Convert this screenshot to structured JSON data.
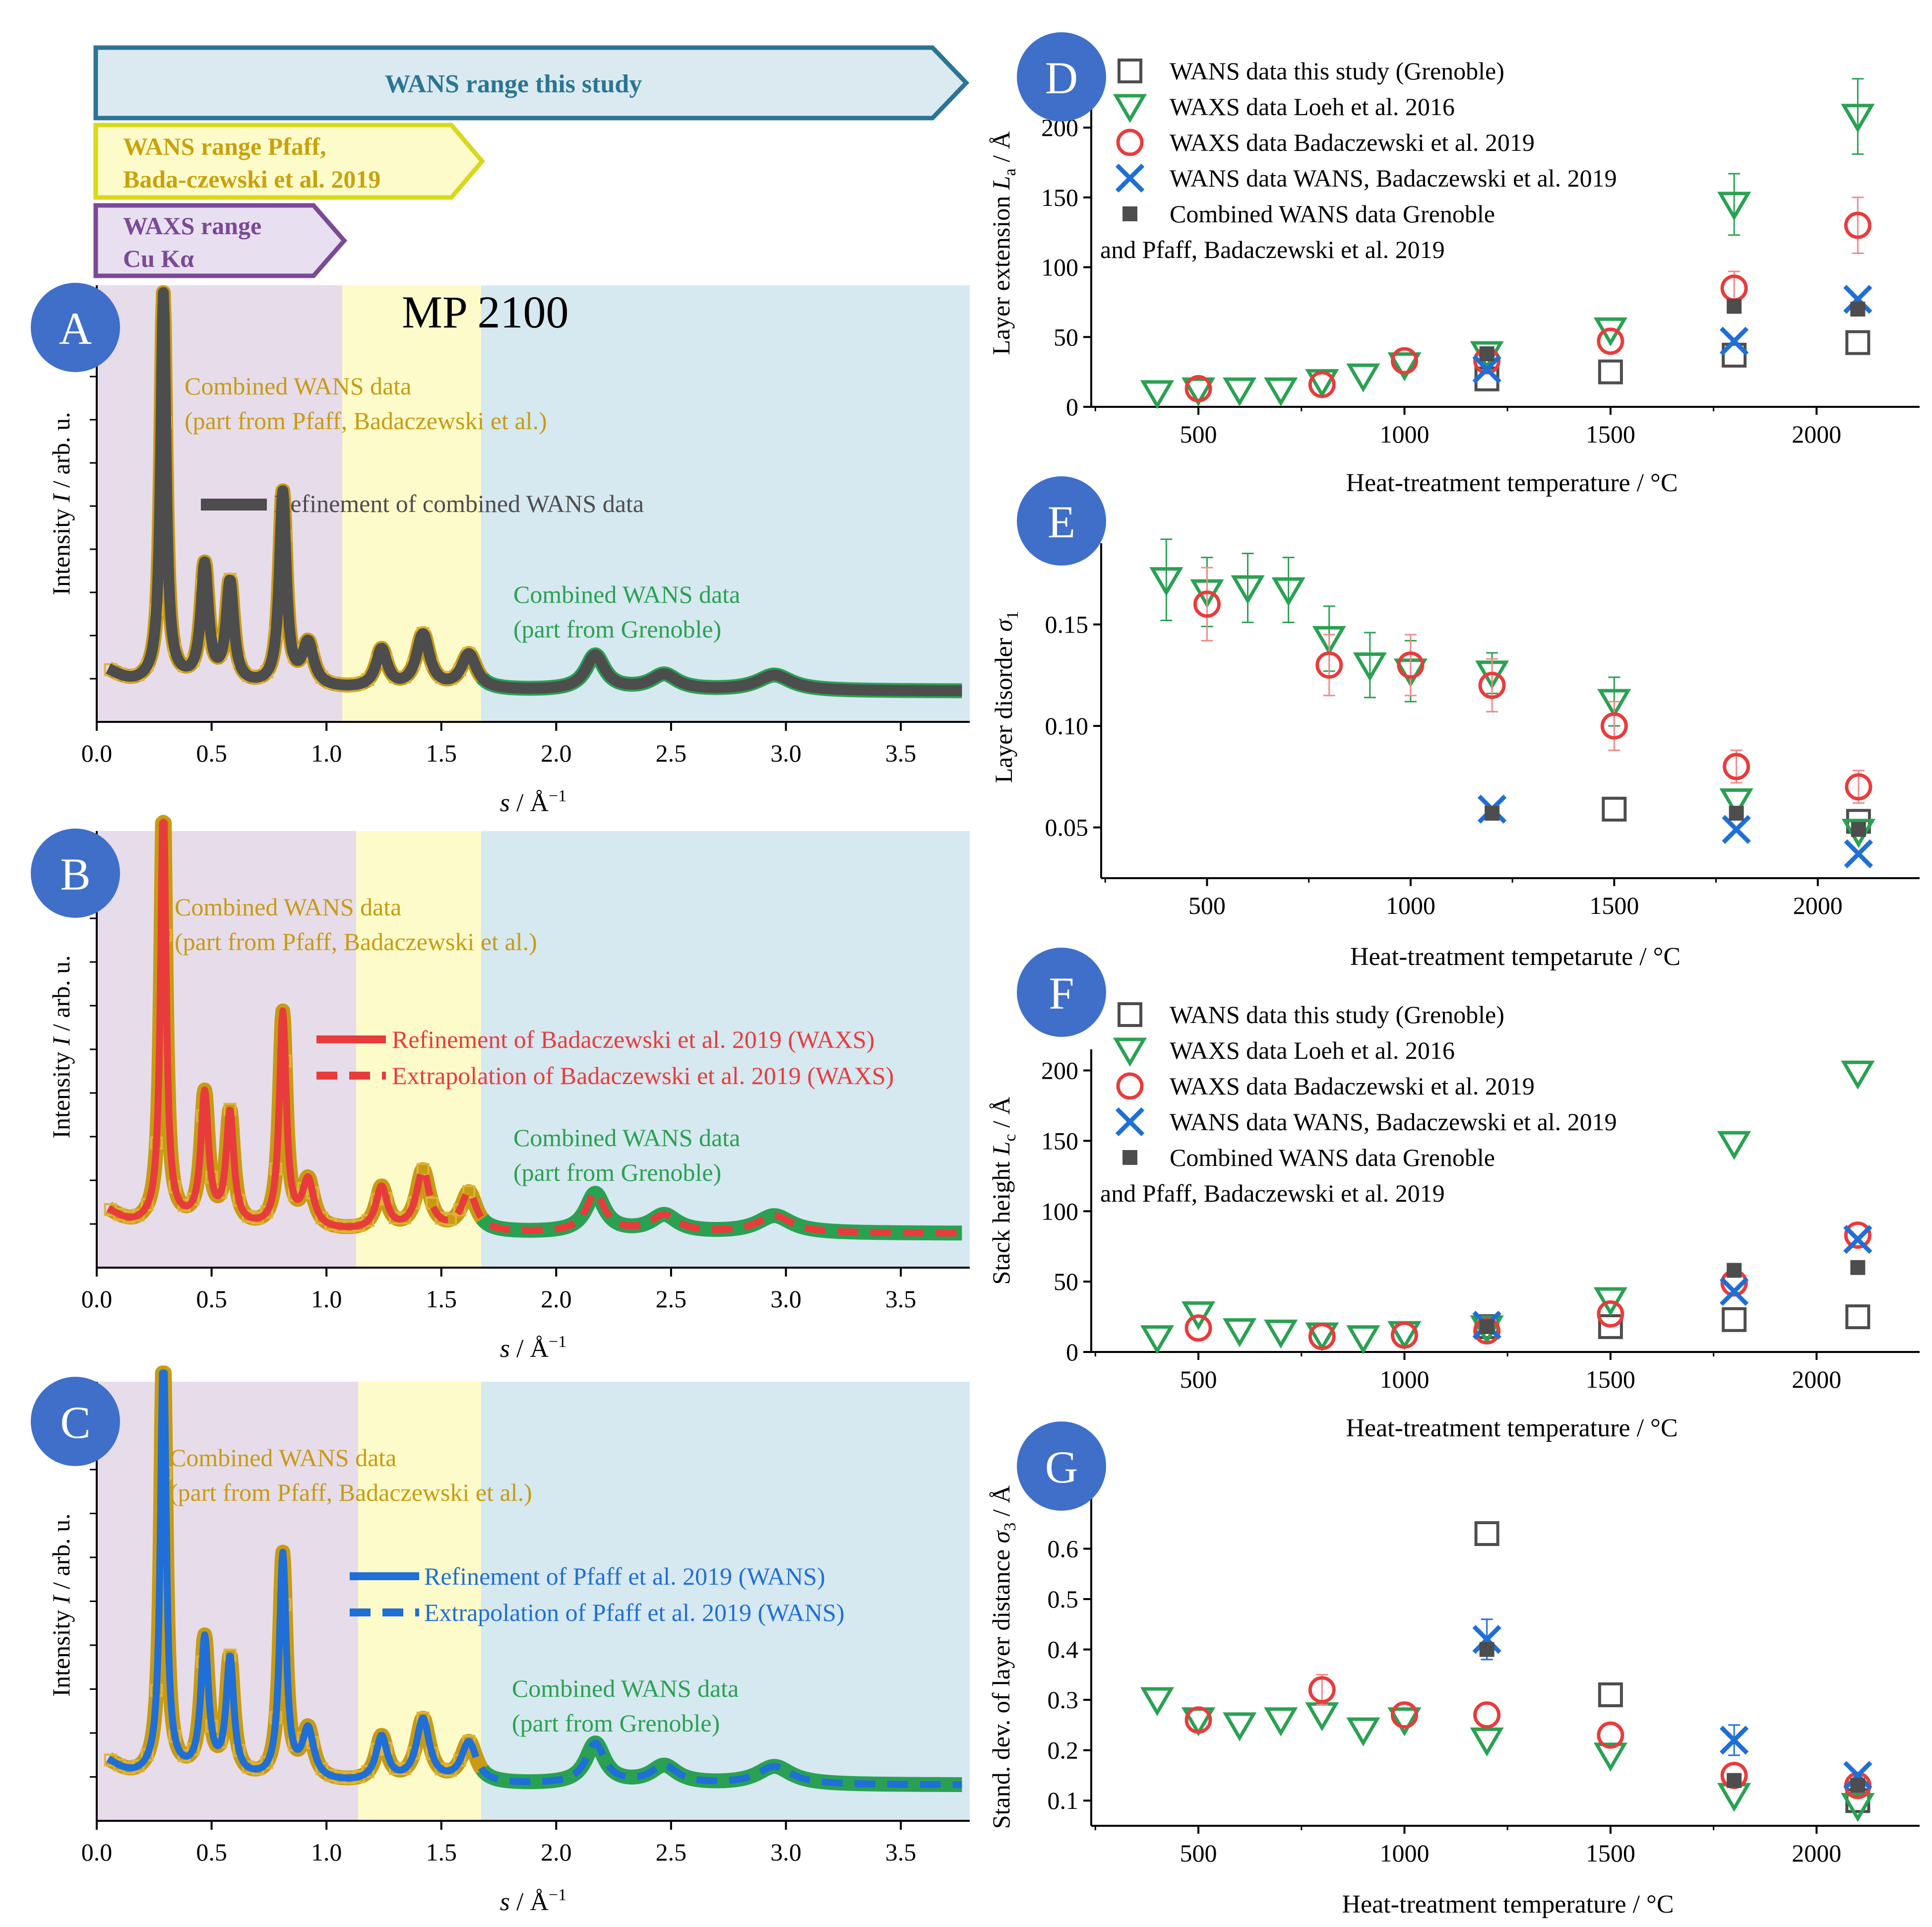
{
  "colors": {
    "purple_bg": "#e6dcea",
    "yellow_bg": "#fefbca",
    "blue_bg": "#d6e8f0",
    "gold": "#c89b12",
    "green": "#2aa152",
    "dark": "#4d4d4d",
    "red": "#e83c3c",
    "blue": "#1f6fd6",
    "circle": "#3f6fc9",
    "arrow_blue": "#2b7594",
    "arrow_yellow": "#d8d81c",
    "arrow_purple": "#7a4a96"
  },
  "arrows": [
    {
      "text": "WANS range this study",
      "style": "blue"
    },
    {
      "lines": [
        "WANS range Pfaff,",
        "Bada-czewski et al. 2019"
      ],
      "style": "yellow"
    },
    {
      "lines": [
        "WAXS range",
        "Cu Kα"
      ],
      "style": "purple"
    }
  ],
  "left_common": {
    "ylabel_pre": "Intensity ",
    "ylabel_var": "I",
    "ylabel_post": " / arb. u.",
    "xlabel_var": "s",
    "xlabel_unit": " / Å",
    "xlabel_exp": "−1",
    "xticks": [
      "0.0",
      "0.5",
      "1.0",
      "1.5",
      "2.0",
      "2.5",
      "3.0",
      "3.5"
    ]
  },
  "panel_a": {
    "letter": "A",
    "title": "MP 2100",
    "gold_label": [
      "Combined WANS data",
      "(part from Pfaff, Badaczewski et al.)"
    ],
    "green_label": [
      "Combined WANS data",
      "(part from Grenoble)"
    ],
    "legend": "Refinement of combined WANS data"
  },
  "panel_b": {
    "letter": "B",
    "gold_label": [
      "Combined WANS data",
      "(part from Pfaff, Badaczewski et al.)"
    ],
    "green_label": [
      "Combined WANS data",
      "(part from Grenoble)"
    ],
    "legend_solid": "Refinement of Badaczewski et al. 2019 (WAXS)",
    "legend_dash": "Extrapolation of Badaczewski et al. 2019 (WAXS)"
  },
  "panel_c": {
    "letter": "C",
    "gold_label": [
      "Combined WANS data",
      "(part from Pfaff, Badaczewski et al.)"
    ],
    "green_label": [
      "Combined WANS data",
      "(part from Grenoble)"
    ],
    "legend_solid": "Refinement of Pfaff et al. 2019 (WANS)",
    "legend_dash": "Extrapolation of Pfaff et al. 2019 (WANS)"
  },
  "legend_right": {
    "wans_grenoble": "WANS data this study (Grenoble)",
    "waxs_loeh": "WAXS data Loeh et al. 2016",
    "waxs_bad": "WAXS data Badaczewski et al. 2019",
    "wans_bad": "WANS data WANS, Badaczewski et al. 2019",
    "combined_1": "Combined WANS data Grenoble",
    "combined_2": "and Pfaff, Badaczewski et al. 2019"
  },
  "panel_d": {
    "letter": "D",
    "xlabel": "Heat-treatment temperature / °C",
    "ylabel_pre": "Layer extension ",
    "ylabel_var": "L",
    "ylabel_sub": "a",
    "ylabel_post": " / Å",
    "yticks": [
      "0",
      "50",
      "100",
      "150",
      "200"
    ],
    "xticks": [
      "500",
      "1000",
      "1500",
      "2000"
    ]
  },
  "panel_e": {
    "letter": "E",
    "xlabel": "Heat-treatment tempetarute / °C",
    "ylabel_pre": "Layer disorder ",
    "ylabel_var": "σ",
    "ylabel_sub": "1",
    "ylabel_post": "",
    "yticks": [
      "0.05",
      "0.10",
      "0.15"
    ],
    "xticks": [
      "500",
      "1000",
      "1500",
      "2000"
    ]
  },
  "panel_f": {
    "letter": "F",
    "xlabel": "Heat-treatment temperature / °C",
    "ylabel_pre": "Stack height ",
    "ylabel_var": "L",
    "ylabel_sub": "c",
    "ylabel_post": " / Å",
    "yticks": [
      "0",
      "50",
      "100",
      "150",
      "200"
    ],
    "xticks": [
      "500",
      "1000",
      "1500",
      "2000"
    ]
  },
  "panel_g": {
    "letter": "G",
    "xlabel": "Heat-treatment temperature / °C",
    "ylabel_pre": "Stand. dev. of layer distance ",
    "ylabel_var": "σ",
    "ylabel_sub": "3",
    "ylabel_post": " / Å",
    "yticks": [
      "0.1",
      "0.2",
      "0.3",
      "0.4",
      "0.5",
      "0.6"
    ],
    "xticks": [
      "500",
      "1000",
      "1500",
      "2000"
    ]
  },
  "chart_data": [
    {
      "type": "line",
      "panel": "A",
      "title": "MP 2100",
      "xlabel": "s / Å−1",
      "ylabel": "Intensity I / arb. u.",
      "xlim": [
        0.0,
        3.8
      ],
      "peaks_s": [
        0.29,
        0.47,
        0.58,
        0.81,
        0.92,
        1.24,
        1.42,
        1.62,
        2.17,
        2.47,
        2.95
      ],
      "regions": {
        "waxs_end": 1.07,
        "pfaff_end": 1.68
      },
      "series": [
        "Combined WANS data (Pfaff, Badaczewski)",
        "Combined WANS data (Grenoble)",
        "Refinement of combined WANS data"
      ]
    },
    {
      "type": "line",
      "panel": "B",
      "xlabel": "s / Å−1",
      "xlim": [
        0.0,
        3.8
      ],
      "regions": {
        "waxs_end": 1.13,
        "pfaff_end": 1.68
      },
      "series": [
        "Refinement of Badaczewski et al. 2019 (WAXS)",
        "Extrapolation of Badaczewski et al. 2019 (WAXS)"
      ]
    },
    {
      "type": "line",
      "panel": "C",
      "xlabel": "s / Å−1",
      "xlim": [
        0.0,
        3.8
      ],
      "regions": {
        "waxs_end": 1.15,
        "pfaff_end": 1.68
      },
      "series": [
        "Refinement of Pfaff et al. 2019 (WANS)",
        "Extrapolation of Pfaff et al. 2019 (WANS)"
      ]
    },
    {
      "type": "scatter",
      "panel": "D",
      "xlim": [
        240,
        2250
      ],
      "ylim": [
        0,
        215
      ],
      "series": [
        {
          "name": "WANS data this study (Grenoble)",
          "marker": "square",
          "x": [
            1200,
            1500,
            1800,
            2100
          ],
          "y": [
            20,
            25,
            37,
            46
          ]
        },
        {
          "name": "WAXS data Loeh et al. 2016",
          "marker": "triangle",
          "x": [
            400,
            500,
            600,
            700,
            800,
            900,
            1000,
            1200,
            1500,
            1800,
            2100
          ],
          "y": [
            10,
            12,
            12,
            12,
            18,
            22,
            30,
            38,
            55,
            145,
            208
          ],
          "err": [
            0,
            0,
            0,
            0,
            0,
            0,
            0,
            0,
            0,
            22,
            27
          ]
        },
        {
          "name": "WAXS data Badaczewski et al. 2019",
          "marker": "circle",
          "x": [
            500,
            800,
            1000,
            1200,
            1500,
            1800,
            2100
          ],
          "y": [
            13,
            16,
            33,
            33,
            47,
            85,
            130
          ],
          "err": [
            0,
            0,
            0,
            0,
            0,
            12,
            20
          ]
        },
        {
          "name": "WANS data WANS, Badaczewski et al. 2019",
          "marker": "x",
          "x": [
            1200,
            1800,
            2100
          ],
          "y": [
            27,
            47,
            77
          ]
        },
        {
          "name": "Combined WANS data Grenoble and Pfaff, Badaczewski et al. 2019",
          "marker": "filled-square",
          "x": [
            1200,
            1800,
            2100
          ],
          "y": [
            38,
            72,
            70
          ]
        }
      ]
    },
    {
      "type": "scatter",
      "panel": "E",
      "xlim": [
        240,
        2250
      ],
      "ylim": [
        0.025,
        0.19
      ],
      "series": [
        {
          "name": "WANS data this study (Grenoble)",
          "marker": "square",
          "x": [
            1500,
            2100
          ],
          "y": [
            0.059,
            0.053
          ]
        },
        {
          "name": "WAXS data Loeh et al. 2016",
          "marker": "triangle",
          "x": [
            400,
            500,
            600,
            700,
            800,
            900,
            1000,
            1200,
            1500,
            1800,
            2100
          ],
          "y": [
            0.172,
            0.166,
            0.168,
            0.167,
            0.143,
            0.13,
            0.127,
            0.126,
            0.112,
            0.063,
            0.048
          ],
          "err": [
            0.02,
            0.017,
            0.017,
            0.016,
            0.016,
            0.016,
            0.015,
            0.01,
            0.012,
            0,
            0
          ]
        },
        {
          "name": "WAXS data Badaczewski et al. 2019",
          "marker": "circle",
          "x": [
            500,
            800,
            1000,
            1200,
            1500,
            1800,
            2100
          ],
          "y": [
            0.16,
            0.13,
            0.13,
            0.12,
            0.1,
            0.08,
            0.07
          ],
          "err": [
            0.018,
            0.015,
            0.015,
            0.013,
            0.012,
            0.008,
            0.008
          ]
        },
        {
          "name": "WANS data WANS, Badaczewski et al. 2019",
          "marker": "x",
          "x": [
            1200,
            1800,
            2100
          ],
          "y": [
            0.059,
            0.049,
            0.037
          ]
        },
        {
          "name": "Combined WANS data Grenoble and Pfaff, Badaczewski et al. 2019",
          "marker": "filled-square",
          "x": [
            1200,
            1800,
            2100
          ],
          "y": [
            0.057,
            0.057,
            0.049
          ]
        }
      ]
    },
    {
      "type": "scatter",
      "panel": "F",
      "xlim": [
        240,
        2250
      ],
      "ylim": [
        0,
        215
      ],
      "series": [
        {
          "name": "WANS data this study (Grenoble)",
          "marker": "square",
          "x": [
            1200,
            1500,
            1800,
            2100
          ],
          "y": [
            18,
            18,
            23,
            25
          ]
        },
        {
          "name": "WAXS data Loeh et al. 2016",
          "marker": "triangle",
          "x": [
            400,
            500,
            600,
            700,
            800,
            900,
            1000,
            1200,
            1500,
            1800,
            2100
          ],
          "y": [
            10,
            27,
            15,
            14,
            12,
            10,
            13,
            17,
            37,
            148,
            198
          ]
        },
        {
          "name": "WAXS data Badaczewski et al. 2019",
          "marker": "circle",
          "x": [
            500,
            800,
            1000,
            1200,
            1500,
            1800,
            2100
          ],
          "y": [
            17,
            11,
            12,
            15,
            27,
            49,
            83
          ]
        },
        {
          "name": "WANS data WANS, Badaczewski et al. 2019",
          "marker": "x",
          "x": [
            1200,
            1800,
            2100
          ],
          "y": [
            19,
            43,
            80
          ]
        },
        {
          "name": "Combined WANS data Grenoble and Pfaff, Badaczewski et al. 2019",
          "marker": "filled-square",
          "x": [
            1200,
            1800,
            2100
          ],
          "y": [
            18,
            58,
            60
          ]
        }
      ]
    },
    {
      "type": "scatter",
      "panel": "G",
      "xlim": [
        240,
        2250
      ],
      "ylim": [
        0.05,
        0.7
      ],
      "series": [
        {
          "name": "WANS data this study (Grenoble)",
          "marker": "square",
          "x": [
            1200,
            1500,
            2100
          ],
          "y": [
            0.63,
            0.31,
            0.1
          ]
        },
        {
          "name": "WAXS data Loeh et al. 2016",
          "marker": "triangle",
          "x": [
            400,
            500,
            600,
            700,
            800,
            900,
            1000,
            1200,
            1500,
            1800,
            2100
          ],
          "y": [
            0.3,
            0.26,
            0.25,
            0.26,
            0.27,
            0.24,
            0.26,
            0.22,
            0.19,
            0.11,
            0.09
          ]
        },
        {
          "name": "WAXS data Badaczewski et al. 2019",
          "marker": "circle",
          "x": [
            500,
            800,
            1000,
            1200,
            1500,
            1800,
            2100
          ],
          "y": [
            0.26,
            0.32,
            0.27,
            0.27,
            0.23,
            0.15,
            0.13
          ],
          "err": [
            0,
            0.03,
            0,
            0,
            0,
            0,
            0
          ]
        },
        {
          "name": "WANS data WANS, Badaczewski et al. 2019",
          "marker": "x",
          "x": [
            1200,
            1800,
            2100
          ],
          "y": [
            0.42,
            0.22,
            0.15
          ],
          "err": [
            0.04,
            0.03,
            0
          ]
        },
        {
          "name": "Combined WANS data Grenoble and Pfaff, Badaczewski et al. 2019",
          "marker": "filled-square",
          "x": [
            1200,
            1800,
            2100
          ],
          "y": [
            0.4,
            0.14,
            0.13
          ]
        }
      ]
    }
  ]
}
